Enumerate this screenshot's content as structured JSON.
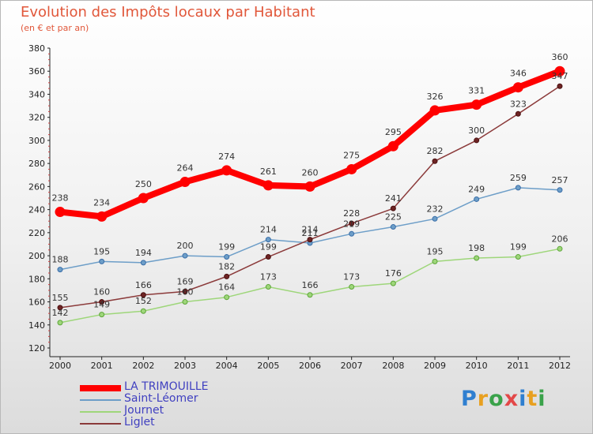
{
  "header": {
    "title": "Evolution des Impôts locaux par Habitant",
    "subtitle": "(en € et par an)"
  },
  "chart_data": {
    "type": "line",
    "title": "Evolution des Impôts locaux par Habitant",
    "subtitle": "(en € et par an)",
    "xlabel": "",
    "ylabel": "",
    "categories": [
      "2000",
      "2001",
      "2002",
      "2003",
      "2004",
      "2005",
      "2006",
      "2007",
      "2008",
      "2009",
      "2010",
      "2011",
      "2012"
    ],
    "y_ticks": [
      "120",
      "140",
      "160",
      "180",
      "200",
      "220",
      "240",
      "260",
      "280",
      "300",
      "320",
      "340",
      "360",
      "380"
    ],
    "ylim": [
      120,
      380
    ],
    "grid": false,
    "legend_position": "bottom-left",
    "series": [
      {
        "name": "LA TRIMOUILLE",
        "color": "#ff0000",
        "values": [
          238,
          234,
          250,
          264,
          274,
          261,
          260,
          275,
          295,
          326,
          331,
          346,
          360
        ]
      },
      {
        "name": "Saint-Léomer",
        "color": "#6d9ec8",
        "values": [
          188,
          195,
          194,
          200,
          199,
          214,
          211,
          219,
          225,
          232,
          249,
          259,
          257
        ]
      },
      {
        "name": "Journet",
        "color": "#9ed67a",
        "values": [
          142,
          149,
          152,
          160,
          164,
          173,
          166,
          173,
          176,
          195,
          198,
          199,
          206
        ]
      },
      {
        "name": "Liglet",
        "color": "#8b3a3a",
        "values": [
          155,
          160,
          166,
          169,
          182,
          199,
          214,
          228,
          241,
          282,
          300,
          323,
          347
        ]
      }
    ]
  },
  "legend": {
    "items": [
      {
        "label": "LA TRIMOUILLE",
        "color": "#4040c0"
      },
      {
        "label": "Saint-Léomer",
        "color": "#4040c0"
      },
      {
        "label": "Journet",
        "color": "#4040c0"
      },
      {
        "label": "Liglet",
        "color": "#4040c0"
      }
    ]
  },
  "logo": {
    "letters": [
      "P",
      "r",
      "o",
      "x",
      "i",
      "t",
      "i"
    ],
    "colors": [
      "#2f7fd0",
      "#e8a020",
      "#3aa24a",
      "#e34848",
      "#2f7fd0",
      "#e8a020",
      "#3aa24a"
    ]
  }
}
